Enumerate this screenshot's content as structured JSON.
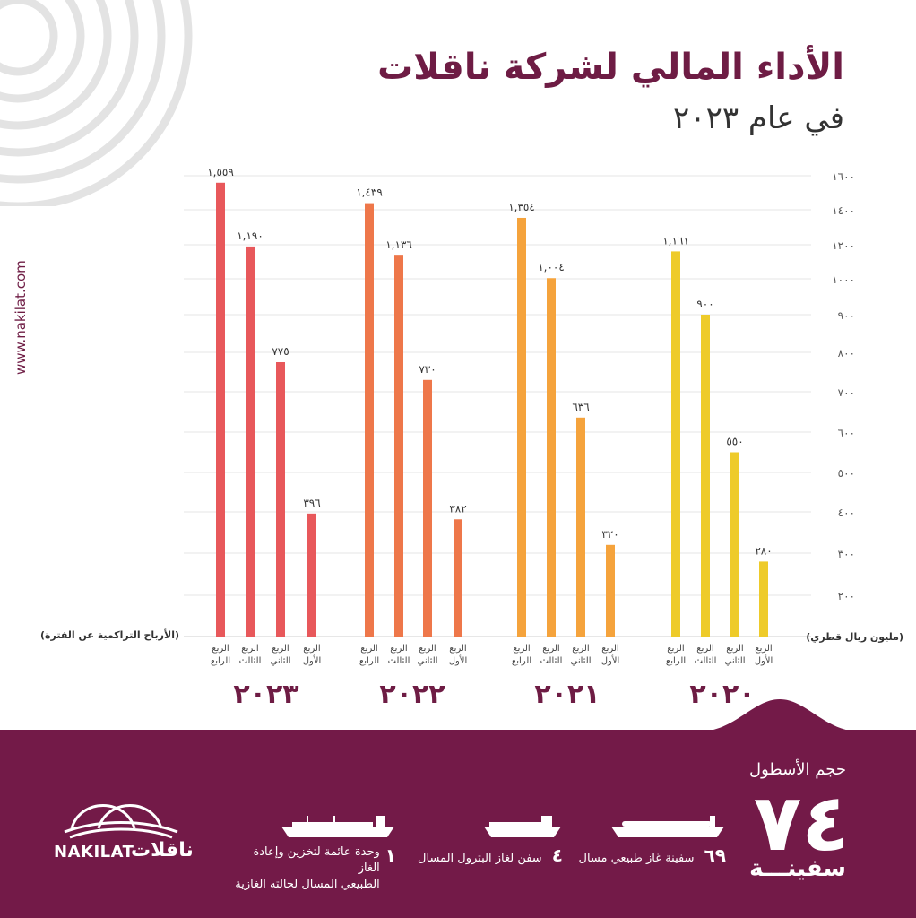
{
  "header": {
    "title": "الأداء المالي لشركة ناقلات",
    "subtitle": "في عام ٢٠٢٣",
    "website": "www.nakilat.com"
  },
  "colors": {
    "brand": "#731a48",
    "series_2023": "#e8585b",
    "series_2022": "#ee774a",
    "series_2021": "#f5a33c",
    "series_2020": "#eecb2a"
  },
  "chart_data": {
    "type": "bar",
    "left_label": "(الأرباح التراكمية عن الفترة)",
    "right_label": "(مليون ريال قطري)",
    "y_ticks": [
      "١٦٠٠",
      "١٤٠٠",
      "١٢٠٠",
      "١٠٠٠",
      "٩٠٠",
      "٨٠٠",
      "٧٠٠",
      "٦٠٠",
      "٥٠٠",
      "٤٠٠",
      "٣٠٠",
      "٢٠٠"
    ],
    "groups": [
      {
        "year": "٢٠٢٣",
        "bars": [
          {
            "label_top": "الربع",
            "label_bottom": "الرابع",
            "value": 1559,
            "value_text": "١,٥٥٩"
          },
          {
            "label_top": "الربع",
            "label_bottom": "الثالث",
            "value": 1190,
            "value_text": "١,١٩٠"
          },
          {
            "label_top": "الربع",
            "label_bottom": "الثاني",
            "value": 775,
            "value_text": "٧٧٥"
          },
          {
            "label_top": "الربع",
            "label_bottom": "الأول",
            "value": 396,
            "value_text": "٣٩٦"
          }
        ]
      },
      {
        "year": "٢٠٢٢",
        "bars": [
          {
            "label_top": "الربع",
            "label_bottom": "الرابع",
            "value": 1439,
            "value_text": "١,٤٣٩"
          },
          {
            "label_top": "الربع",
            "label_bottom": "الثالث",
            "value": 1136,
            "value_text": "١,١٣٦"
          },
          {
            "label_top": "الربع",
            "label_bottom": "الثاني",
            "value": 730,
            "value_text": "٧٣٠"
          },
          {
            "label_top": "الربع",
            "label_bottom": "الأول",
            "value": 382,
            "value_text": "٣٨٢"
          }
        ]
      },
      {
        "year": "٢٠٢١",
        "bars": [
          {
            "label_top": "الربع",
            "label_bottom": "الرابع",
            "value": 1354,
            "value_text": "١,٣٥٤"
          },
          {
            "label_top": "الربع",
            "label_bottom": "الثالث",
            "value": 1004,
            "value_text": "١,٠٠٤"
          },
          {
            "label_top": "الربع",
            "label_bottom": "الثاني",
            "value": 636,
            "value_text": "٦٣٦"
          },
          {
            "label_top": "الربع",
            "label_bottom": "الأول",
            "value": 320,
            "value_text": "٣٢٠"
          }
        ]
      },
      {
        "year": "٢٠٢٠",
        "bars": [
          {
            "label_top": "الربع",
            "label_bottom": "الرابع",
            "value": 1161,
            "value_text": "١,١٦١"
          },
          {
            "label_top": "الربع",
            "label_bottom": "الثالث",
            "value": 900,
            "value_text": "٩٠٠"
          },
          {
            "label_top": "الربع",
            "label_bottom": "الثاني",
            "value": 550,
            "value_text": "٥٥٠"
          },
          {
            "label_top": "الربع",
            "label_bottom": "الأول",
            "value": 280,
            "value_text": "٢٨٠"
          }
        ]
      }
    ]
  },
  "footer": {
    "fleet_title": "حجم الأسطول",
    "fleet_count": "٧٤",
    "fleet_unit": "سفينـــة",
    "vessels": [
      {
        "count": "٦٩",
        "text": "سفينة غاز طبيعي مسال",
        "icon": "lng-carrier-icon"
      },
      {
        "count": "٤",
        "text": "سفن لغاز البترول المسال",
        "icon": "lpg-carrier-icon"
      },
      {
        "count": "١",
        "text_line1": "وحدة عائمة لتخزين وإعادة الغاز",
        "text_line2": "الطبيعي المسال لحالته الغازية",
        "icon": "fsru-icon"
      }
    ],
    "logo_en": "NAKILAT",
    "logo_ar": "ناقلات"
  }
}
